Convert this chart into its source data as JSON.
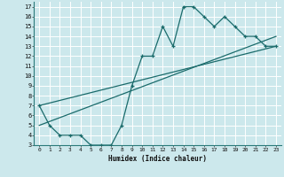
{
  "xlabel": "Humidex (Indice chaleur)",
  "bg_color": "#cce8ec",
  "grid_color": "#ffffff",
  "line_color": "#1a6b6b",
  "xlim": [
    -0.5,
    23.5
  ],
  "ylim": [
    3,
    17.5
  ],
  "xticks": [
    0,
    1,
    2,
    3,
    4,
    5,
    6,
    7,
    8,
    9,
    10,
    11,
    12,
    13,
    14,
    15,
    16,
    17,
    18,
    19,
    20,
    21,
    22,
    23
  ],
  "yticks": [
    3,
    4,
    5,
    6,
    7,
    8,
    9,
    10,
    11,
    12,
    13,
    14,
    15,
    16,
    17
  ],
  "line1_x": [
    0,
    1,
    2,
    3,
    4,
    5,
    6,
    7,
    8,
    9,
    10,
    11,
    12,
    13,
    14,
    15,
    16,
    17,
    18,
    19,
    20,
    21,
    22,
    23
  ],
  "line1_y": [
    7,
    5,
    4,
    4,
    4,
    3,
    3,
    3,
    5,
    9,
    12,
    12,
    15,
    13,
    17,
    17,
    16,
    15,
    16,
    15,
    14,
    14,
    13,
    13
  ],
  "line2_x": [
    0,
    23
  ],
  "line2_y": [
    7,
    13
  ],
  "line3_x": [
    0,
    23
  ],
  "line3_y": [
    5,
    14
  ]
}
